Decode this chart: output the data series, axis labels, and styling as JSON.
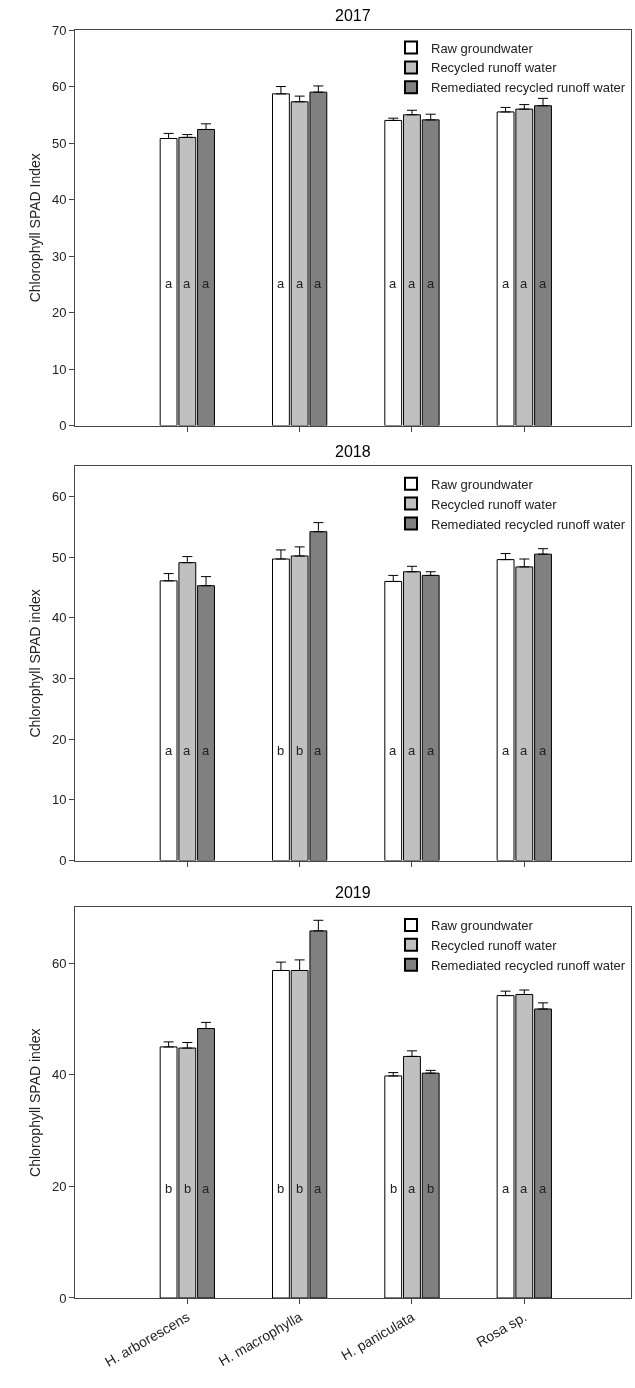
{
  "chart_data": [
    {
      "type": "bar",
      "title": "2017",
      "ylabel": "Chlorophyll SPAD Index",
      "categories": [
        null,
        null,
        null,
        null
      ],
      "ylim": [
        0,
        70
      ],
      "yticks": [
        0,
        10,
        20,
        30,
        40,
        50,
        60,
        70
      ],
      "grid": false,
      "legend": "top right",
      "series": [
        {
          "name": "Raw groundwater",
          "color": "#ffffff",
          "values": [
            50.8,
            58.7,
            54.0,
            55.5
          ],
          "errors": [
            0.9,
            1.3,
            0.4,
            0.8
          ]
        },
        {
          "name": "Recycled runoff water",
          "color": "#c0c0c0",
          "values": [
            51.0,
            57.3,
            55.0,
            56.0
          ],
          "errors": [
            0.5,
            1.0,
            0.8,
            0.8
          ]
        },
        {
          "name": "Remediated recycled runoff water",
          "color": "#808080",
          "values": [
            52.4,
            59.0,
            54.1,
            56.6
          ],
          "errors": [
            1.0,
            1.1,
            1.0,
            1.3
          ]
        }
      ],
      "annotations": [
        "a",
        "a",
        "a",
        "a",
        "a",
        "a",
        "a",
        "a",
        "a",
        "a",
        "a",
        "a"
      ]
    },
    {
      "type": "bar",
      "title": "2018",
      "ylabel": "Chlorophyll SPAD index",
      "categories": [
        null,
        null,
        null,
        null
      ],
      "ylim": [
        0,
        65
      ],
      "yticks": [
        0,
        10,
        20,
        30,
        40,
        50,
        60
      ],
      "grid": false,
      "legend": "top right",
      "series": [
        {
          "name": "Raw groundwater",
          "color": "#ffffff",
          "values": [
            46.1,
            49.7,
            46.0,
            49.6
          ],
          "errors": [
            1.2,
            1.5,
            1.0,
            1.0
          ]
        },
        {
          "name": "Recycled runoff water",
          "color": "#c0c0c0",
          "values": [
            49.1,
            50.2,
            47.6,
            48.4
          ],
          "errors": [
            1.0,
            1.5,
            0.9,
            1.3
          ]
        },
        {
          "name": "Remediated recycled runoff water",
          "color": "#808080",
          "values": [
            45.3,
            54.2,
            47.0,
            50.5
          ],
          "errors": [
            1.5,
            1.5,
            0.6,
            0.9
          ]
        }
      ],
      "annotations": [
        "a",
        "a",
        "a",
        "b",
        "b",
        "a",
        "a",
        "a",
        "a",
        "a",
        "a",
        "a"
      ]
    },
    {
      "type": "bar",
      "title": "2019",
      "ylabel": "Chlorophyll SPAD index",
      "categories": [
        "H. arborescens",
        "H. macrophylla",
        "H. paniculata",
        "Rosa sp."
      ],
      "ylim": [
        0,
        70
      ],
      "yticks": [
        0,
        20,
        40,
        60
      ],
      "grid": false,
      "legend": "top right",
      "series": [
        {
          "name": "Raw groundwater",
          "color": "#ffffff",
          "values": [
            45.0,
            58.7,
            39.8,
            54.2
          ],
          "errors": [
            0.9,
            1.5,
            0.6,
            0.8
          ]
        },
        {
          "name": "Recycled runoff water",
          "color": "#c0c0c0",
          "values": [
            44.8,
            58.7,
            43.3,
            54.4
          ],
          "errors": [
            1.0,
            1.9,
            1.0,
            0.8
          ]
        },
        {
          "name": "Remediated recycled runoff water",
          "color": "#808080",
          "values": [
            48.3,
            65.8,
            40.3,
            51.8
          ],
          "errors": [
            1.1,
            1.9,
            0.5,
            1.1
          ]
        }
      ],
      "annotations": [
        "b",
        "b",
        "a",
        "b",
        "b",
        "a",
        "b",
        "a",
        "b",
        "a",
        "a",
        "a"
      ]
    }
  ]
}
